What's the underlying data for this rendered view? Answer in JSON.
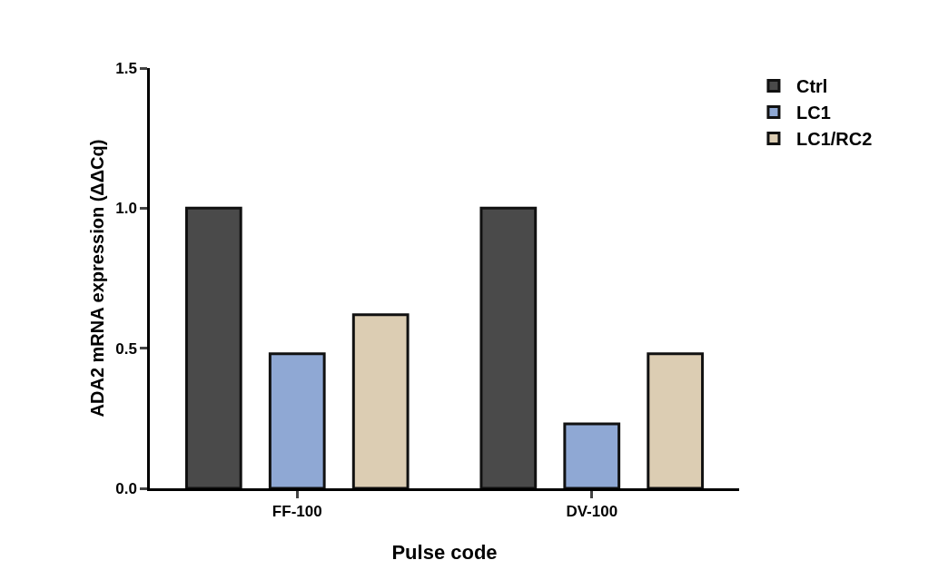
{
  "chart_data": {
    "type": "bar",
    "xlabel": "Pulse code",
    "ylabel": "ADA2 mRNA expression (ΔΔCq)",
    "categories": [
      "FF-100",
      "DV-100"
    ],
    "series": [
      {
        "name": "Ctrl",
        "color": "#4a4a4a",
        "values": [
          1.0,
          1.0
        ]
      },
      {
        "name": "LC1",
        "color": "#8fa8d4",
        "values": [
          0.48,
          0.23
        ]
      },
      {
        "name": "LC1/RC2",
        "color": "#dccdb3",
        "values": [
          0.62,
          0.48
        ]
      }
    ],
    "ylim": [
      0,
      1.5
    ],
    "yticks": [
      {
        "value": 0,
        "label": "0.0"
      },
      {
        "value": 0.5,
        "label": "0.5"
      },
      {
        "value": 1,
        "label": "1.0"
      },
      {
        "value": 1.5,
        "label": "1.5"
      }
    ],
    "grid": false,
    "legend": "top right"
  }
}
